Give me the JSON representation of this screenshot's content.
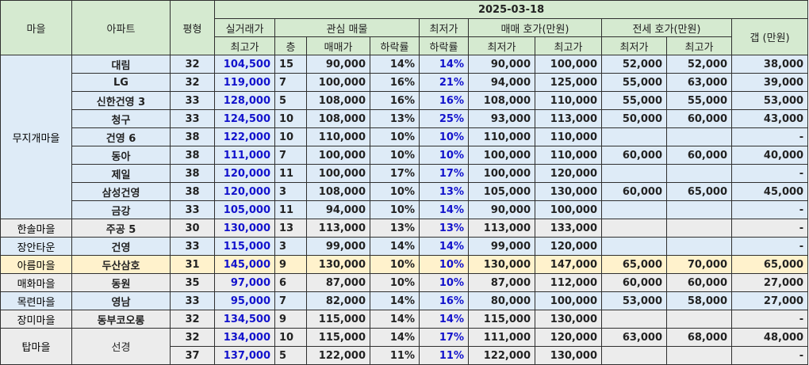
{
  "header": {
    "village": "마을",
    "apartment": "아파트",
    "size": "평형",
    "max_trade_line1": "실거래가",
    "max_trade_line2": "최고가",
    "date": "2025-03-18",
    "listing_group": "관심 매물",
    "min_drop_line1": "최저가",
    "min_drop_line2": "하락률",
    "sale_group": "매매 호가(만원)",
    "jeonse_group": "전세 호가(만원)",
    "gap": "갭 (만원)",
    "floor": "층",
    "price": "매매가",
    "drop": "하락률",
    "low": "최저가",
    "high": "최고가"
  },
  "rows": [
    {
      "village": "무지개마을",
      "apt": "대림",
      "size": "32",
      "max": "104,500",
      "floor": "15",
      "price": "90,000",
      "drop": "14%",
      "mindrop": "14%",
      "sale_low": "90,000",
      "sale_high": "100,000",
      "j_low": "52,000",
      "j_high": "52,000",
      "gap": "38,000"
    },
    {
      "village": "",
      "apt": "LG",
      "size": "32",
      "max": "119,000",
      "floor": "7",
      "price": "100,000",
      "drop": "16%",
      "mindrop": "21%",
      "sale_low": "94,000",
      "sale_high": "125,000",
      "j_low": "55,000",
      "j_high": "63,000",
      "gap": "39,000"
    },
    {
      "village": "",
      "apt": "신한건영 3",
      "size": "33",
      "max": "128,000",
      "floor": "5",
      "price": "108,000",
      "drop": "16%",
      "mindrop": "16%",
      "sale_low": "108,000",
      "sale_high": "110,000",
      "j_low": "55,000",
      "j_high": "55,000",
      "gap": "53,000"
    },
    {
      "village": "",
      "apt": "청구",
      "size": "33",
      "max": "124,500",
      "floor": "10",
      "price": "108,000",
      "drop": "13%",
      "mindrop": "25%",
      "sale_low": "93,000",
      "sale_high": "113,000",
      "j_low": "50,000",
      "j_high": "60,000",
      "gap": "43,000"
    },
    {
      "village": "",
      "apt": "건영 6",
      "size": "38",
      "max": "122,000",
      "floor": "10",
      "price": "110,000",
      "drop": "10%",
      "mindrop": "10%",
      "sale_low": "110,000",
      "sale_high": "110,000",
      "j_low": "",
      "j_high": "",
      "gap": "-"
    },
    {
      "village": "",
      "apt": "동아",
      "size": "38",
      "max": "111,000",
      "floor": "7",
      "price": "100,000",
      "drop": "10%",
      "mindrop": "10%",
      "sale_low": "100,000",
      "sale_high": "110,000",
      "j_low": "60,000",
      "j_high": "60,000",
      "gap": "40,000"
    },
    {
      "village": "",
      "apt": "제일",
      "size": "38",
      "max": "120,000",
      "floor": "11",
      "price": "100,000",
      "drop": "17%",
      "mindrop": "17%",
      "sale_low": "100,000",
      "sale_high": "120,000",
      "j_low": "",
      "j_high": "",
      "gap": "-"
    },
    {
      "village": "",
      "apt": "삼성건영",
      "size": "38",
      "max": "120,000",
      "floor": "3",
      "price": "108,000",
      "drop": "10%",
      "mindrop": "13%",
      "sale_low": "105,000",
      "sale_high": "130,000",
      "j_low": "60,000",
      "j_high": "65,000",
      "gap": "45,000"
    },
    {
      "village": "",
      "apt": "금강",
      "size": "33",
      "max": "105,000",
      "floor": "11",
      "price": "94,000",
      "drop": "10%",
      "mindrop": "14%",
      "sale_low": "90,000",
      "sale_high": "100,000",
      "j_low": "",
      "j_high": "",
      "gap": "-"
    },
    {
      "village": "한솔마을",
      "apt": "주공 5",
      "size": "30",
      "max": "130,000",
      "floor": "13",
      "price": "113,000",
      "drop": "13%",
      "mindrop": "13%",
      "sale_low": "113,000",
      "sale_high": "133,000",
      "j_low": "",
      "j_high": "",
      "gap": "-"
    },
    {
      "village": "장안타운",
      "apt": "건영",
      "size": "33",
      "max": "115,000",
      "floor": "3",
      "price": "99,000",
      "drop": "14%",
      "mindrop": "14%",
      "sale_low": "99,000",
      "sale_high": "120,000",
      "j_low": "",
      "j_high": "",
      "gap": "-"
    },
    {
      "village": "아름마을",
      "apt": "두산삼호",
      "size": "31",
      "max": "145,000",
      "floor": "9",
      "price": "130,000",
      "drop": "10%",
      "mindrop": "10%",
      "sale_low": "130,000",
      "sale_high": "147,000",
      "j_low": "65,000",
      "j_high": "70,000",
      "gap": "65,000"
    },
    {
      "village": "매화마을",
      "apt": "동원",
      "size": "35",
      "max": "97,000",
      "floor": "6",
      "price": "87,000",
      "drop": "10%",
      "mindrop": "10%",
      "sale_low": "87,000",
      "sale_high": "112,000",
      "j_low": "60,000",
      "j_high": "60,000",
      "gap": "27,000"
    },
    {
      "village": "목련마을",
      "apt": "영남",
      "size": "33",
      "max": "95,000",
      "floor": "7",
      "price": "82,000",
      "drop": "14%",
      "mindrop": "16%",
      "sale_low": "80,000",
      "sale_high": "100,000",
      "j_low": "53,000",
      "j_high": "58,000",
      "gap": "27,000"
    },
    {
      "village": "장미마을",
      "apt": "동부코오롱",
      "size": "32",
      "max": "134,500",
      "floor": "9",
      "price": "115,000",
      "drop": "14%",
      "mindrop": "14%",
      "sale_low": "115,000",
      "sale_high": "130,000",
      "j_low": "",
      "j_high": "",
      "gap": "-"
    },
    {
      "village": "탑마을",
      "apt": "선경",
      "size": "32",
      "max": "134,000",
      "floor": "10",
      "price": "115,000",
      "drop": "14%",
      "mindrop": "17%",
      "sale_low": "111,000",
      "sale_high": "120,000",
      "j_low": "63,000",
      "j_high": "68,000",
      "gap": "48,000"
    },
    {
      "village": "",
      "apt": "",
      "size": "37",
      "max": "137,000",
      "floor": "5",
      "price": "122,000",
      "drop": "11%",
      "mindrop": "11%",
      "sale_low": "122,000",
      "sale_high": "130,000",
      "j_low": "",
      "j_high": "",
      "gap": "-"
    }
  ],
  "colors": {
    "header_bg": "#d5ead0",
    "group_blue": "#deebf7",
    "group_gray": "#ececec",
    "group_yellow": "#fff2cc",
    "value_blue": "#1212cc"
  }
}
